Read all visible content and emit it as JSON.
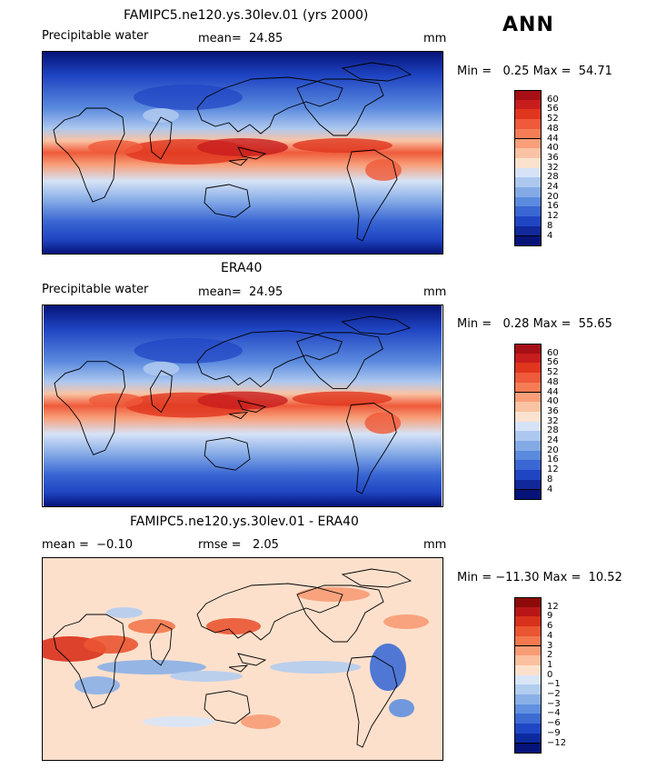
{
  "season_label": "ANN",
  "panels": [
    {
      "id": "model",
      "title": "FAMIPC5.ne120.ys.30lev.01 (yrs 2000)",
      "field_label": "Precipitable water",
      "stat_text": "mean=  24.85",
      "stat2_text": "",
      "units": "mm",
      "minmax_text": "Min =   0.25 Max =  54.71",
      "colorbar": {
        "labels": [
          "60",
          "56",
          "52",
          "48",
          "44",
          "40",
          "36",
          "32",
          "28",
          "24",
          "20",
          "16",
          "12",
          "8",
          "4"
        ],
        "colors": [
          "#a50f15",
          "#c81d1d",
          "#e0361e",
          "#ef5a3a",
          "#f57d55",
          "#f89f7a",
          "#f9c3a4",
          "#fbe2cf",
          "#d6e3f7",
          "#adc8ef",
          "#84aae6",
          "#5b8ade",
          "#3a67d3",
          "#1f45c3",
          "#10289a",
          "#061379"
        ]
      }
    },
    {
      "id": "obs",
      "title": "ERA40",
      "field_label": "Precipitable water",
      "stat_text": "mean=  24.95",
      "stat2_text": "",
      "units": "mm",
      "minmax_text": "Min =   0.28 Max =  55.65",
      "colorbar": {
        "labels": [
          "60",
          "56",
          "52",
          "48",
          "44",
          "40",
          "36",
          "32",
          "28",
          "24",
          "20",
          "16",
          "12",
          "8",
          "4"
        ],
        "colors": [
          "#a50f15",
          "#c81d1d",
          "#e0361e",
          "#ef5a3a",
          "#f57d55",
          "#f89f7a",
          "#f9c3a4",
          "#fbe2cf",
          "#d6e3f7",
          "#adc8ef",
          "#84aae6",
          "#5b8ade",
          "#3a67d3",
          "#1f45c3",
          "#10289a",
          "#061379"
        ]
      }
    },
    {
      "id": "diff",
      "title": "FAMIPC5.ne120.ys.30lev.01 - ERA40",
      "field_label": "",
      "stat_text": "mean =  −0.10",
      "stat2_text": "rmse =   2.05",
      "units": "mm",
      "minmax_text": "Min = −11.30 Max =  10.52",
      "colorbar": {
        "labels": [
          "12",
          "9",
          "6",
          "4",
          "3",
          "2",
          "1",
          "0",
          "−1",
          "−2",
          "−3",
          "−4",
          "−6",
          "−9",
          "−12"
        ],
        "colors": [
          "#8c0a0a",
          "#b81616",
          "#d8311b",
          "#ea5532",
          "#f3784e",
          "#f79c75",
          "#fac0a0",
          "#fde0cc",
          "#d8e6f8",
          "#b3cdef",
          "#89b0e7",
          "#6090df",
          "#3c6bd4",
          "#1f46c4",
          "#0c2a9f",
          "#05147a"
        ]
      }
    }
  ]
}
